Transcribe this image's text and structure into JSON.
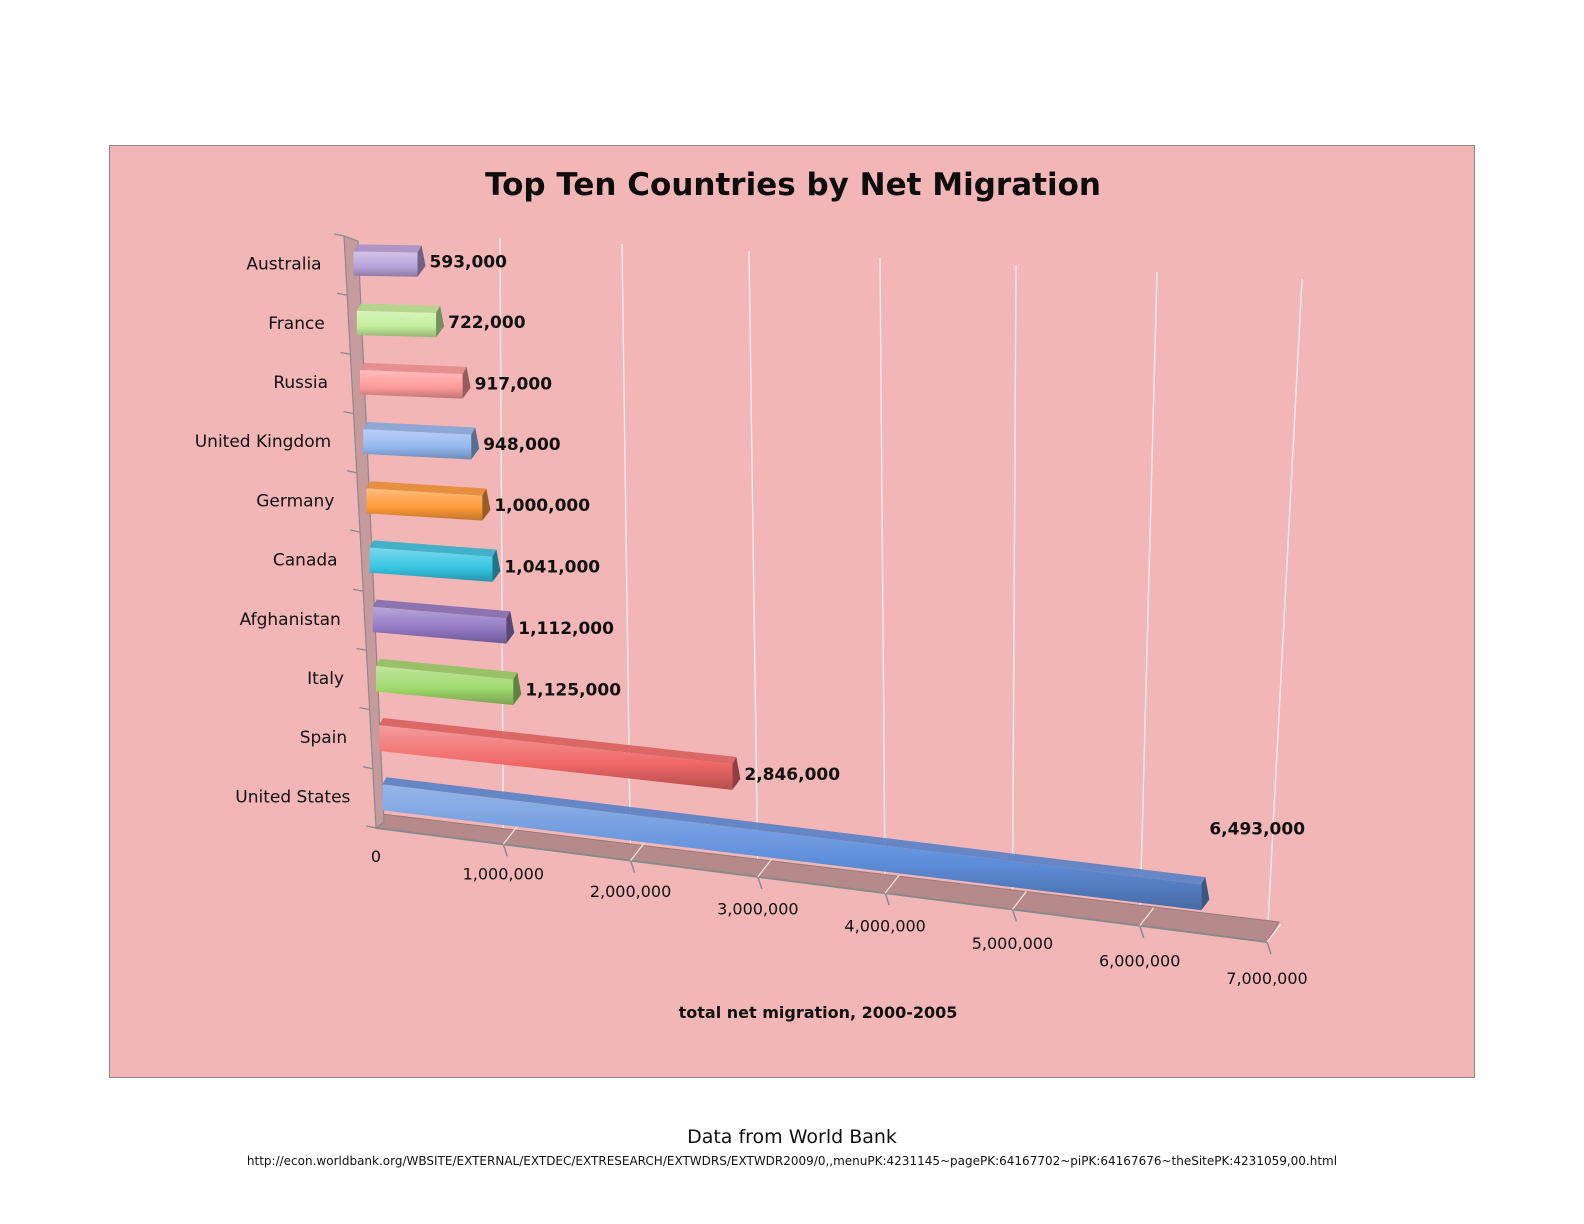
{
  "chart_data": {
    "type": "bar",
    "orientation": "horizontal",
    "style": "3d",
    "title": "Top Ten Countries by Net Migration",
    "xlabel": "total net migration, 2000-2005",
    "xlim": [
      0,
      7000000
    ],
    "x_ticks": [
      0,
      1000000,
      2000000,
      3000000,
      4000000,
      5000000,
      6000000,
      7000000
    ],
    "x_tick_labels": [
      "0",
      "1,000,000",
      "2,000,000",
      "3,000,000",
      "4,000,000",
      "5,000,000",
      "6,000,000",
      "7,000,000"
    ],
    "grid": true,
    "categories": [
      "Australia",
      "France",
      "Russia",
      "United Kingdom",
      "Germany",
      "Canada",
      "Afghanistan",
      "Italy",
      "Spain",
      "United States"
    ],
    "values": [
      593000,
      722000,
      917000,
      948000,
      1000000,
      1041000,
      1112000,
      1125000,
      2846000,
      6493000
    ],
    "data_labels": [
      "593,000",
      "722,000",
      "917,000",
      "948,000",
      "1,000,000",
      "1,041,000",
      "1,112,000",
      "1,125,000",
      "2,846,000",
      "6,493,000"
    ],
    "colors": [
      "#b9a3dc",
      "#c2ee9a",
      "#ff9a9a",
      "#93b7f0",
      "#ff9a3a",
      "#34c4e2",
      "#9278c4",
      "#9ed86a",
      "#f06868",
      "#5f8fdc"
    ],
    "background": "#f2b6b6"
  },
  "source": {
    "label": "Data from World Bank",
    "url": "http://econ.worldbank.org/WBSITE/EXTERNAL/EXTDEC/EXTRESEARCH/EXTWDRS/EXTWDR2009/0,,menuPK:4231145~pagePK:64167702~piPK:64167676~theSitePK:4231059,00.html"
  }
}
